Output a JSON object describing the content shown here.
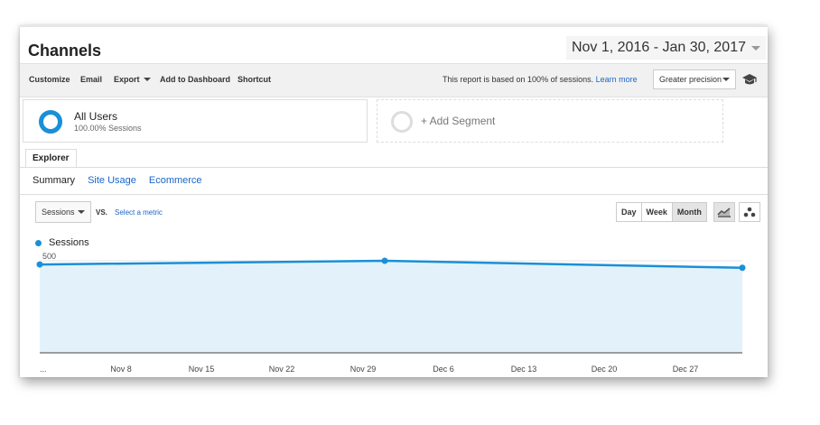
{
  "page": {
    "title": "Channels",
    "date_range": "Nov 1, 2016 - Jan 30, 2017"
  },
  "toolbar": {
    "customize": "Customize",
    "email": "Email",
    "export": "Export",
    "add_to_dashboard": "Add to Dashboard",
    "shortcut": "Shortcut",
    "sessions_note": "This report is based on 100% of sessions.",
    "learn_more": "Learn more",
    "precision": "Greater precision"
  },
  "segments": {
    "primary_name": "All Users",
    "primary_sub": "100.00% Sessions",
    "add": "+ Add Segment"
  },
  "tabs": {
    "explorer": "Explorer",
    "subtabs": [
      "Summary",
      "Site Usage",
      "Ecommerce"
    ]
  },
  "controls": {
    "metric": "Sessions",
    "vs": "VS.",
    "select_metric": "Select a metric",
    "granularity": [
      "Day",
      "Week",
      "Month"
    ],
    "granularity_selected": "Month"
  },
  "icons": {
    "date_caret": "chevron-down-icon",
    "precision_caret": "chevron-down-icon",
    "graduation": "graduation-cap-icon",
    "line_chart": "line-chart-icon",
    "motion_chart": "bubble-chart-icon"
  },
  "colors": {
    "series": "#1a8fd8",
    "area_fill": "#e3f2fa",
    "link": "#1a66c9"
  },
  "chart_data": {
    "type": "area",
    "series": [
      {
        "name": "Sessions",
        "x": [
          "Nov 2016",
          "Dec 2016",
          "Jan 2017"
        ],
        "values": [
          480,
          500,
          462
        ]
      }
    ],
    "ylim": [
      0,
      500
    ],
    "yticks": [
      250,
      500
    ],
    "xticks": [
      "...",
      "Nov 8",
      "Nov 15",
      "Nov 22",
      "Nov 29",
      "Dec 6",
      "Dec 13",
      "Dec 20",
      "Dec 27"
    ],
    "grid": true
  }
}
